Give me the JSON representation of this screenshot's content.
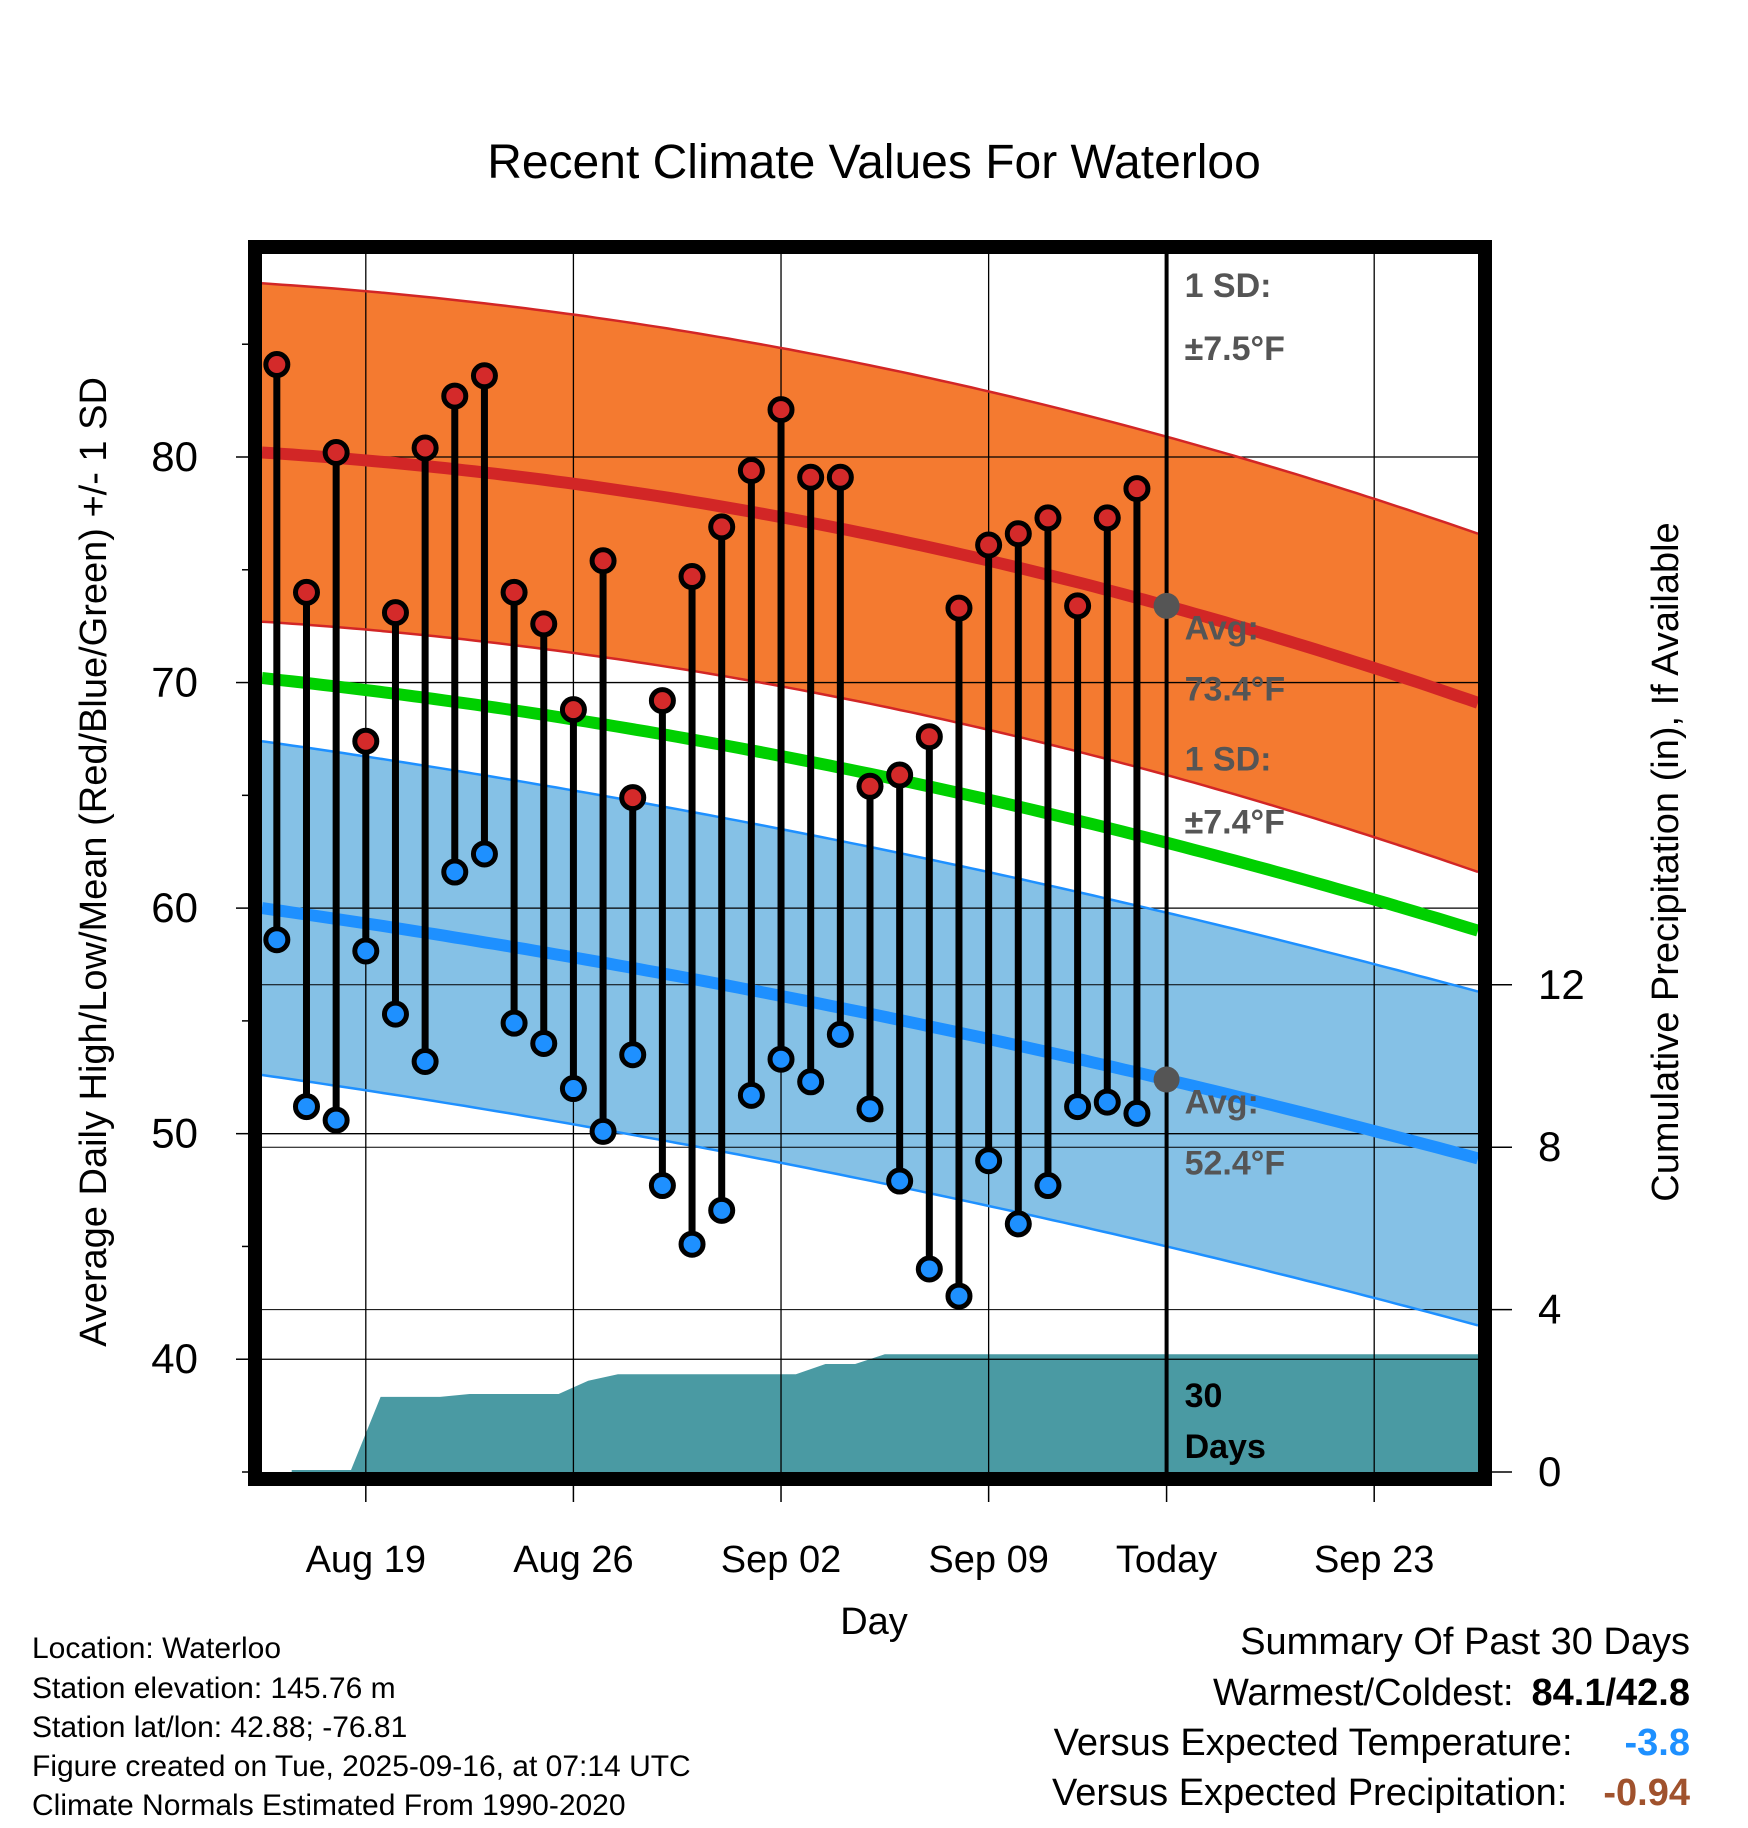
{
  "chart_data": {
    "type": "line",
    "title": "Recent Climate Values For Waterloo",
    "xlabel": "Day",
    "ylabel": "Average Daily High/Low/Mean (Red/Blue/Green) +/- 1 SD",
    "y2label": "Cumulative Precipitation (in), If Available",
    "ylim": [
      35,
      89
    ],
    "y_ticks": [
      40,
      50,
      60,
      70,
      80
    ],
    "y2lim": [
      0,
      30
    ],
    "y2_ticks": [
      0,
      4,
      8,
      12
    ],
    "x_range_days": [
      -30.5,
      10.5
    ],
    "x_ticks": [
      {
        "day": -27,
        "label": "Aug 19"
      },
      {
        "day": -20,
        "label": "Aug 26"
      },
      {
        "day": -13,
        "label": "Sep 02"
      },
      {
        "day": -6,
        "label": "Sep 09"
      },
      {
        "day": 0,
        "label": "Today"
      },
      {
        "day": 7,
        "label": "Sep 23"
      }
    ],
    "normal_high": {
      "start": 80.2,
      "today": 73.4,
      "end": 69.1
    },
    "normal_low": {
      "start": 60.0,
      "today": 52.4,
      "end": 48.9
    },
    "normal_mean": {
      "start": 70.2,
      "today": 62.9,
      "end": 59.0
    },
    "sd_high": 7.5,
    "sd_low": 7.4,
    "daily_highs": [
      84.1,
      74.0,
      80.2,
      67.4,
      73.1,
      80.4,
      82.7,
      83.6,
      74.0,
      72.6,
      68.8,
      75.4,
      64.9,
      69.2,
      74.7,
      76.9,
      79.4,
      82.1,
      79.1,
      79.1,
      65.4,
      65.9,
      67.6,
      73.3,
      76.1,
      76.6,
      77.3,
      73.4,
      77.3,
      78.6
    ],
    "daily_lows": [
      58.6,
      51.2,
      50.6,
      58.1,
      55.3,
      53.2,
      61.6,
      62.4,
      54.9,
      54.0,
      52.0,
      50.1,
      53.5,
      47.7,
      45.1,
      46.6,
      51.7,
      53.3,
      52.3,
      54.4,
      51.1,
      47.9,
      44.0,
      42.8,
      48.8,
      46.0,
      47.7,
      51.2,
      51.4,
      50.9
    ],
    "cumulative_precip": {
      "days": [
        -29.5,
        -27.5,
        -26.5,
        -24.5,
        -23.5,
        -20.5,
        -19.5,
        -18.5,
        -14.5,
        -13.5,
        -12.5,
        -11.5,
        -10.5,
        -9.5,
        10.5
      ],
      "values": [
        0.05,
        0.05,
        1.85,
        1.85,
        1.92,
        1.92,
        2.25,
        2.41,
        2.41,
        2.41,
        2.41,
        2.66,
        2.66,
        2.9,
        2.9
      ]
    },
    "high_sd_label": "1 SD:",
    "high_sd_value": "±7.5°F",
    "high_avg_label": "Avg:",
    "high_avg_value": "73.4°F",
    "low_sd_label": "1 SD:",
    "low_sd_value": "±7.4°F",
    "low_avg_label": "Avg:",
    "low_avg_value": "52.4°F",
    "days_label_number": "30",
    "days_label_word": "Days",
    "colors": {
      "high_band": "#f47a30",
      "high_line": "#d22626",
      "low_band": "#85c1e6",
      "low_line": "#1e90ff",
      "mean_line": "#00d000",
      "precip": "#4a9aa3",
      "marker_high": "#d42a2a",
      "marker_low": "#1e90ff",
      "today_dot": "#555555",
      "annotation_text": "#555555"
    }
  },
  "location": {
    "location_line": "Location: Waterloo",
    "elevation_line": "Station elevation: 145.76 m",
    "latlon_line": "Station lat/lon: 42.88; -76.81",
    "created_line": "Figure created on Tue, 2025-09-16, at 07:14 UTC",
    "normals_line": "Climate Normals Estimated From 1990-2020"
  },
  "summary": {
    "title": "Summary Of Past 30 Days",
    "warm_cold_label": "Warmest/Coldest:",
    "warm_cold_value": "84.1/42.8",
    "temp_label": "Versus Expected Temperature:",
    "temp_value": "-3.8",
    "temp_color": "#1e90ff",
    "precip_label": "Versus Expected Precipitation:",
    "precip_value": "-0.94",
    "precip_color": "#a0522d"
  }
}
